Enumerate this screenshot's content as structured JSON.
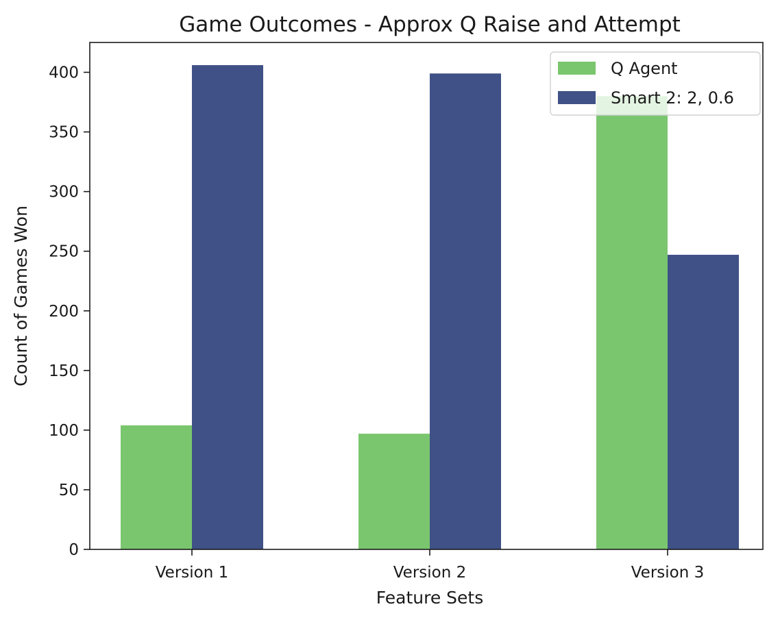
{
  "chart_data": {
    "type": "bar",
    "title": "Game Outcomes - Approx Q Raise and Attempt",
    "xlabel": "Feature Sets",
    "ylabel": "Count of Games Won",
    "categories": [
      "Version 1",
      "Version 2",
      "Version 3"
    ],
    "series": [
      {
        "name": "Q Agent",
        "values": [
          104,
          97,
          380
        ],
        "color": "#7ac66e"
      },
      {
        "name": "Smart 2: 2, 0.6",
        "values": [
          406,
          399,
          247
        ],
        "color": "#3f5186"
      }
    ],
    "ylim": [
      0,
      425
    ],
    "yticks": [
      0,
      50,
      100,
      150,
      200,
      250,
      300,
      350,
      400
    ],
    "grid": false,
    "legend": "top-right"
  }
}
